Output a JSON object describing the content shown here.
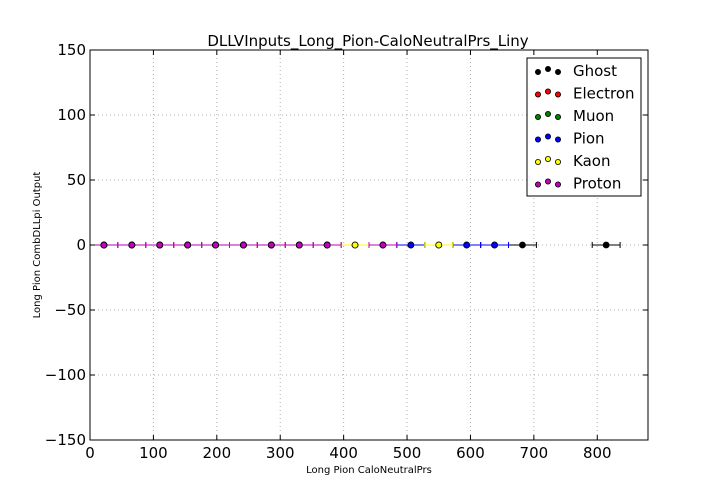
{
  "chart_data": {
    "type": "scatter",
    "title": "DLLVInputs_Long_Pion-CaloNeutralPrs_Liny",
    "xlabel": "Long Pion CaloNeutralPrs",
    "ylabel": "Long Pion CombDLLpi Output",
    "xlim": [
      0,
      880
    ],
    "ylim": [
      -150,
      150
    ],
    "xticks": [
      0,
      100,
      200,
      300,
      400,
      500,
      600,
      700,
      800
    ],
    "yticks": [
      -150,
      -100,
      -50,
      0,
      50,
      100,
      150
    ],
    "grid": true,
    "legend_position": "top-right",
    "series": [
      {
        "name": "Ghost",
        "color": "#000000",
        "x": [
          22,
          66,
          110,
          154,
          198,
          242,
          286,
          330,
          374,
          418,
          462,
          506,
          550,
          594,
          638,
          682,
          814
        ],
        "y": [
          0,
          0,
          0,
          0,
          0,
          0,
          0,
          0,
          0,
          0,
          0,
          0,
          0,
          0,
          0,
          0,
          0
        ],
        "xerr": 22
      },
      {
        "name": "Electron",
        "color": "#ff0000",
        "x": [
          22,
          66,
          110,
          154,
          198,
          242,
          286,
          330,
          374
        ],
        "y": [
          0,
          0,
          0,
          0,
          0,
          0,
          0,
          0,
          0
        ],
        "xerr": 22
      },
      {
        "name": "Muon",
        "color": "#008000",
        "x": [
          22,
          66,
          110,
          154,
          198,
          242,
          286,
          330,
          374
        ],
        "y": [
          0,
          0,
          0,
          0,
          0,
          0,
          0,
          0,
          0
        ],
        "xerr": 22
      },
      {
        "name": "Pion",
        "color": "#0000ff",
        "x": [
          22,
          66,
          110,
          154,
          198,
          242,
          286,
          330,
          374,
          462,
          506,
          594,
          638
        ],
        "y": [
          0,
          0,
          0,
          0,
          0,
          0,
          0,
          0,
          0,
          0,
          0,
          0,
          0
        ],
        "xerr": 22
      },
      {
        "name": "Kaon",
        "color": "#ffff00",
        "x": [
          22,
          66,
          110,
          154,
          198,
          242,
          286,
          330,
          374,
          418,
          550
        ],
        "y": [
          0,
          0,
          0,
          0,
          0,
          0,
          0,
          0,
          0,
          0,
          0
        ],
        "xerr": 22
      },
      {
        "name": "Proton",
        "color": "#bf00bf",
        "x": [
          22,
          66,
          110,
          154,
          198,
          242,
          286,
          330,
          374,
          462
        ],
        "y": [
          0,
          0,
          0,
          0,
          0,
          0,
          0,
          0,
          0,
          0
        ],
        "xerr": 22
      }
    ]
  }
}
